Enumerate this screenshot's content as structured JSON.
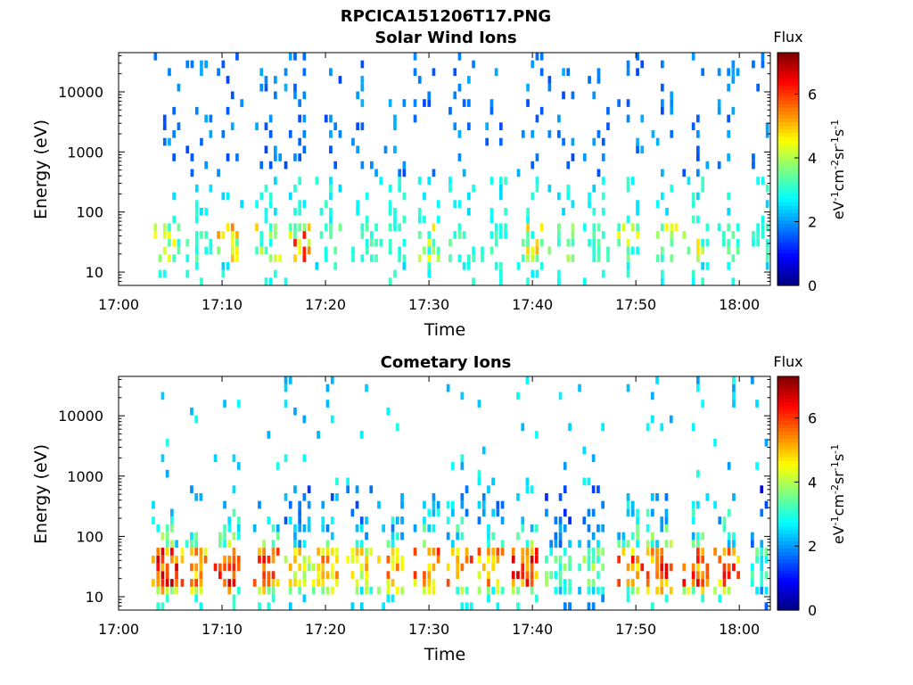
{
  "figure_title": "RPCICA151206T17.PNG",
  "colors": {
    "axis": "#000000",
    "background": "#ffffff"
  },
  "chart_data": [
    {
      "type": "heatmap",
      "title": "Solar Wind Ions",
      "xlabel": "Time",
      "ylabel": "Energy (eV)",
      "x_range": [
        "17:00",
        "18:03"
      ],
      "x_ticks": [
        "17:00",
        "17:10",
        "17:20",
        "17:30",
        "17:40",
        "17:50",
        "18:00"
      ],
      "y_scale": "log",
      "y_range": [
        6,
        45000
      ],
      "y_ticks": [
        10,
        100,
        1000,
        10000
      ],
      "y_tick_labels": [
        "10",
        "100",
        "1000",
        "10000"
      ],
      "colorbar": {
        "label": "Flux",
        "unit_label": "eV-1cm-2sr-1s-1",
        "range": [
          0,
          7.3
        ],
        "ticks": [
          "0",
          "2",
          "4",
          "6"
        ],
        "colormap": "jet"
      },
      "burst_minutes": [
        4.7,
        7.8,
        10.8,
        14.5,
        17.3,
        20.3,
        23.8,
        26.5,
        29.8,
        33.2,
        36.3,
        39.8,
        42.8,
        46.2,
        49.5,
        52.8,
        55.8,
        59.2,
        62.5
      ],
      "burst_peak_flux": [
        5.0,
        3.5,
        5.6,
        5.2,
        6.4,
        3.6,
        3.4,
        3.2,
        4.8,
        3.5,
        3.4,
        5.2,
        4.0,
        3.5,
        4.9,
        4.8,
        4.9,
        3.6,
        3.3
      ]
    },
    {
      "type": "heatmap",
      "title": "Cometary Ions",
      "xlabel": "Time",
      "ylabel": "Energy (eV)",
      "x_range": [
        "17:00",
        "18:03"
      ],
      "x_ticks": [
        "17:00",
        "17:10",
        "17:20",
        "17:30",
        "17:40",
        "17:50",
        "18:00"
      ],
      "y_scale": "log",
      "y_range": [
        6,
        45000
      ],
      "y_ticks": [
        10,
        100,
        1000,
        10000
      ],
      "y_tick_labels": [
        "10",
        "100",
        "1000",
        "10000"
      ],
      "colorbar": {
        "label": "Flux",
        "unit_label": "eV-1cm-2sr-1s-1",
        "range": [
          0,
          7.3
        ],
        "ticks": [
          "0",
          "2",
          "4",
          "6"
        ],
        "colormap": "jet"
      },
      "burst_minutes": [
        4.5,
        7.3,
        10.5,
        14.3,
        17.3,
        20.0,
        23.3,
        26.3,
        29.8,
        33.0,
        36.0,
        39.3,
        42.5,
        45.7,
        49.5,
        52.3,
        55.8,
        58.8,
        62.4
      ],
      "burst_peak_flux": [
        6.9,
        6.2,
        6.9,
        6.7,
        5.2,
        5.8,
        5.4,
        5.8,
        6.2,
        6.2,
        6.0,
        6.7,
        4.0,
        4.2,
        6.4,
        6.7,
        6.6,
        6.4,
        3.6
      ]
    }
  ]
}
